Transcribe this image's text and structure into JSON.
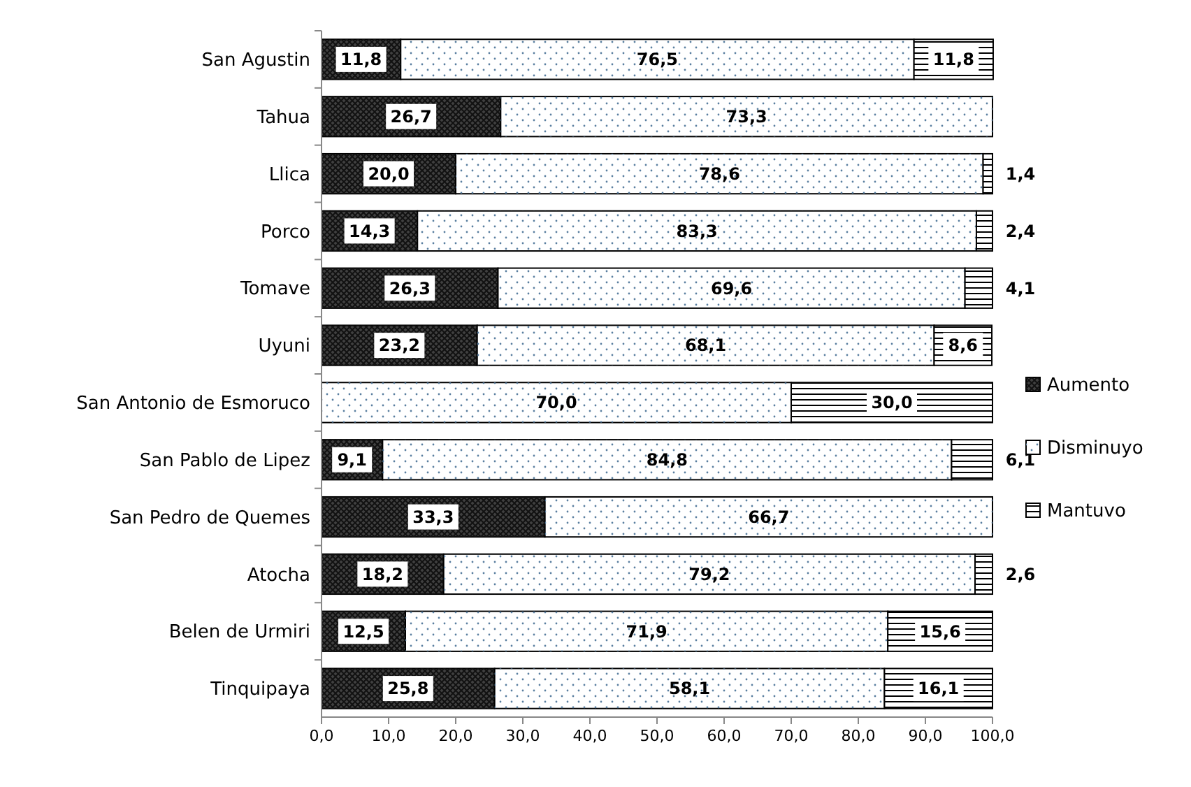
{
  "chart_data": {
    "type": "bar",
    "orientation": "horizontal",
    "stacked": true,
    "legend": "right",
    "grid": false,
    "categories": [
      "San Agustin",
      "Tahua",
      "Llica",
      "Porco",
      "Tomave",
      "Uyuni",
      "San Antonio de Esmoruco",
      "San Pablo de Lipez",
      "San Pedro de Quemes",
      "Atocha",
      "Belen de Urmiri",
      "Tinquipaya"
    ],
    "xlim": [
      0,
      100
    ],
    "xticks": [
      {
        "value": 0,
        "label": "0,0"
      },
      {
        "value": 10,
        "label": "10,0"
      },
      {
        "value": 20,
        "label": "20,0"
      },
      {
        "value": 30,
        "label": "30,0"
      },
      {
        "value": 40,
        "label": "40,0"
      },
      {
        "value": 50,
        "label": "50,0"
      },
      {
        "value": 60,
        "label": "60,0"
      },
      {
        "value": 70,
        "label": "70,0"
      },
      {
        "value": 80,
        "label": "80,0"
      },
      {
        "value": 90,
        "label": "90,0"
      },
      {
        "value": 100,
        "label": "100,0"
      }
    ],
    "series": [
      {
        "name": "Aumento",
        "color": "#404040",
        "values": [
          11.8,
          26.7,
          20.0,
          14.3,
          26.3,
          23.2,
          null,
          9.1,
          33.3,
          18.2,
          12.5,
          25.8
        ],
        "value_labels": [
          "11,8",
          "26,7",
          "20,0",
          "14,3",
          "26,3",
          "23,2",
          null,
          "9,1",
          "33,3",
          "18,2",
          "12,5",
          "25,8"
        ]
      },
      {
        "name": "Disminuyo",
        "color": "#ffffff",
        "values": [
          76.5,
          73.3,
          78.6,
          83.3,
          69.6,
          68.1,
          70.0,
          84.8,
          66.7,
          79.2,
          71.9,
          58.1
        ],
        "value_labels": [
          "76,5",
          "73,3",
          "78,6",
          "83,3",
          "69,6",
          "68,1",
          "70,0",
          "84,8",
          "66,7",
          "79,2",
          "71,9",
          "58,1"
        ]
      },
      {
        "name": "Mantuvo",
        "color": "#ffffff",
        "values": [
          11.8,
          null,
          1.4,
          2.4,
          4.1,
          8.6,
          30.0,
          6.1,
          null,
          2.6,
          15.6,
          16.1
        ],
        "value_labels": [
          "11,8",
          null,
          "1,4",
          "2,4",
          "4,1",
          "8,6",
          "30,0",
          "6,1",
          null,
          "2,6",
          "15,6",
          "16,1"
        ]
      }
    ]
  }
}
